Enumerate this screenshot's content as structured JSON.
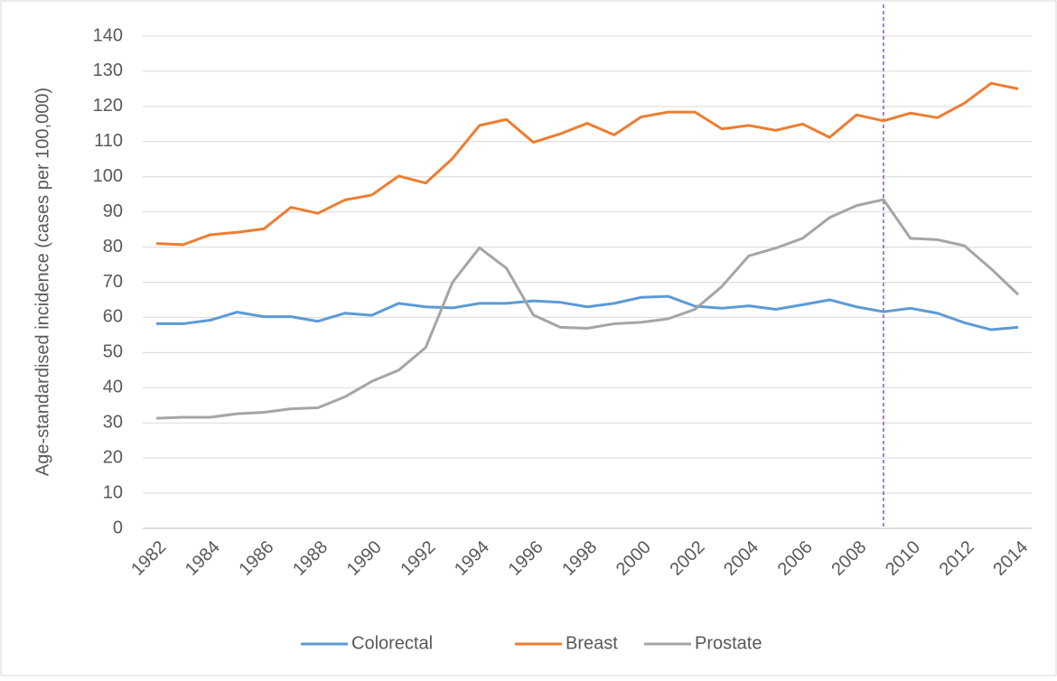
{
  "chart_data": {
    "type": "line",
    "y_label": "Age-standardised incidence (cases per 100,000)",
    "x": [
      1982,
      1983,
      1984,
      1985,
      1986,
      1987,
      1988,
      1989,
      1990,
      1991,
      1992,
      1993,
      1994,
      1995,
      1996,
      1997,
      1998,
      1999,
      2000,
      2001,
      2002,
      2003,
      2004,
      2005,
      2006,
      2007,
      2008,
      2009,
      2010,
      2011,
      2012,
      2013,
      2014
    ],
    "xlim": [
      1982,
      2014
    ],
    "xticks": [
      1982,
      1984,
      1986,
      1988,
      1990,
      1992,
      1994,
      1996,
      1998,
      2000,
      2002,
      2004,
      2006,
      2008,
      2010,
      2012,
      2014
    ],
    "ylim": [
      0,
      140
    ],
    "yticks": [
      0,
      10,
      20,
      30,
      40,
      50,
      60,
      70,
      80,
      90,
      100,
      110,
      120,
      130,
      140
    ],
    "grid": true,
    "legend": "bottom",
    "vline": 2009,
    "vline_color": "#7030a0",
    "series": [
      {
        "name": "Colorectal",
        "color": "#5b9bd5",
        "values": [
          58.2,
          58.2,
          59.2,
          61.5,
          60.2,
          60.2,
          58.9,
          61.2,
          60.6,
          64,
          63,
          62.7,
          64,
          64,
          64.7,
          64.3,
          63,
          64,
          65.7,
          66,
          63.2,
          62.6,
          63.3,
          62.3,
          63.6,
          65,
          63,
          61.6,
          62.6,
          61.2,
          58.5,
          56.5,
          57.2
        ]
      },
      {
        "name": "Breast",
        "color": "#ed7d31",
        "values": [
          81,
          80.7,
          83.5,
          84.2,
          85.2,
          91.3,
          89.6,
          93.4,
          94.8,
          100.2,
          98.2,
          105.2,
          114.6,
          116.3,
          109.8,
          112.2,
          115.2,
          111.9,
          117,
          118.4,
          118.4,
          113.6,
          114.6,
          113.2,
          115,
          111.2,
          117.6,
          115.9,
          118.1,
          116.8,
          120.9,
          126.6,
          125
        ]
      },
      {
        "name": "Prostate",
        "color": "#a5a5a5",
        "values": [
          31.3,
          31.6,
          31.6,
          32.6,
          33,
          34,
          34.3,
          37.4,
          41.8,
          45,
          51.4,
          70,
          79.8,
          74,
          60.7,
          57.2,
          56.9,
          58.2,
          58.6,
          59.6,
          62.3,
          68.8,
          77.5,
          79.7,
          82.5,
          88.4,
          91.8,
          93.5,
          82.5,
          82.1,
          80.4,
          73.8,
          66.5
        ]
      }
    ]
  }
}
